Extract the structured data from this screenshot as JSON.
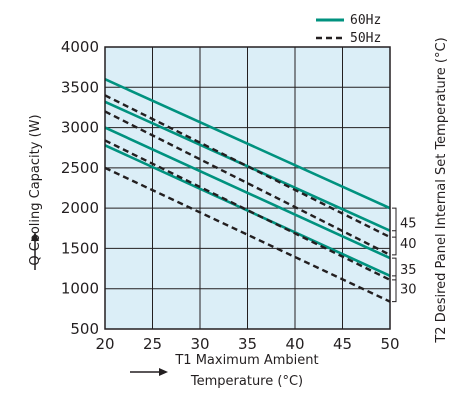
{
  "chart_data": {
    "type": "line",
    "x": [
      20,
      50
    ],
    "xlim": [
      20,
      50
    ],
    "ylim": [
      500,
      4000
    ],
    "xticks": [
      "20",
      "25",
      "30",
      "35",
      "40",
      "45",
      "50"
    ],
    "yticks": [
      "500",
      "1000",
      "1500",
      "2000",
      "2500",
      "3000",
      "3500",
      "4000"
    ],
    "xlabel_line1": "T1 Maximum Ambient",
    "xlabel_line2": "Temperature (°C)",
    "ylabel": "Q Cooling Capacity (W)",
    "y2label": "T2 Desired Panel Internal Set Temperature (°C)",
    "grid": true,
    "legend_position": "top-right",
    "legend": [
      {
        "label": "60Hz",
        "style": "solid",
        "color": "#00927f"
      },
      {
        "label": "50Hz",
        "style": "dashed",
        "color": "#231f20"
      }
    ],
    "series": [
      {
        "name": "60Hz",
        "t2": "45",
        "values": [
          3600,
          2000
        ]
      },
      {
        "name": "60Hz",
        "t2": "40",
        "values": [
          3320,
          1720
        ]
      },
      {
        "name": "60Hz",
        "t2": "35",
        "values": [
          3000,
          1380
        ]
      },
      {
        "name": "60Hz",
        "t2": "30",
        "values": [
          2780,
          1160
        ]
      },
      {
        "name": "50Hz",
        "t2": "45",
        "values": [
          3400,
          1640
        ]
      },
      {
        "name": "50Hz",
        "t2": "40",
        "values": [
          3200,
          1420
        ]
      },
      {
        "name": "50Hz",
        "t2": "35",
        "values": [
          2840,
          1110
        ]
      },
      {
        "name": "50Hz",
        "t2": "30",
        "values": [
          2500,
          840
        ]
      }
    ],
    "t2_groups": [
      "45",
      "40",
      "35",
      "30"
    ],
    "colors": {
      "plot_bg": "#dbeef7",
      "grid": "#231f20",
      "series_60": "#00927f",
      "series_50": "#231f20"
    }
  }
}
